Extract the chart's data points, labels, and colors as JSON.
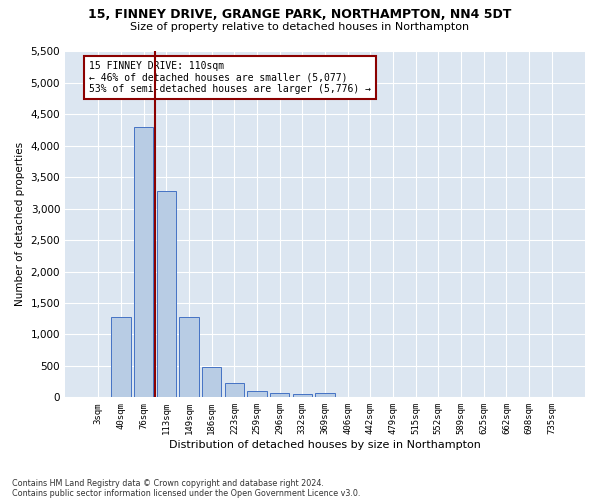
{
  "title1": "15, FINNEY DRIVE, GRANGE PARK, NORTHAMPTON, NN4 5DT",
  "title2": "Size of property relative to detached houses in Northampton",
  "xlabel": "Distribution of detached houses by size in Northampton",
  "ylabel": "Number of detached properties",
  "footer1": "Contains HM Land Registry data © Crown copyright and database right 2024.",
  "footer2": "Contains public sector information licensed under the Open Government Licence v3.0.",
  "annotation_line1": "15 FINNEY DRIVE: 110sqm",
  "annotation_line2": "← 46% of detached houses are smaller (5,077)",
  "annotation_line3": "53% of semi-detached houses are larger (5,776) →",
  "bar_labels": [
    "3sqm",
    "40sqm",
    "76sqm",
    "113sqm",
    "149sqm",
    "186sqm",
    "223sqm",
    "259sqm",
    "296sqm",
    "332sqm",
    "369sqm",
    "406sqm",
    "442sqm",
    "479sqm",
    "515sqm",
    "552sqm",
    "589sqm",
    "625sqm",
    "662sqm",
    "698sqm",
    "735sqm"
  ],
  "bar_values": [
    0,
    1270,
    4300,
    3280,
    1280,
    480,
    230,
    105,
    65,
    55,
    65,
    0,
    0,
    0,
    0,
    0,
    0,
    0,
    0,
    0,
    0
  ],
  "bar_color": "#b8cce4",
  "bar_edge_color": "#4472c4",
  "background_color": "#dce6f1",
  "fig_background": "#ffffff",
  "grid_color": "#ffffff",
  "vline_color": "#8b0000",
  "ylim": [
    0,
    5500
  ],
  "yticks": [
    0,
    500,
    1000,
    1500,
    2000,
    2500,
    3000,
    3500,
    4000,
    4500,
    5000,
    5500
  ],
  "annotation_box_color": "#ffffff",
  "annotation_box_edge": "#8b0000"
}
